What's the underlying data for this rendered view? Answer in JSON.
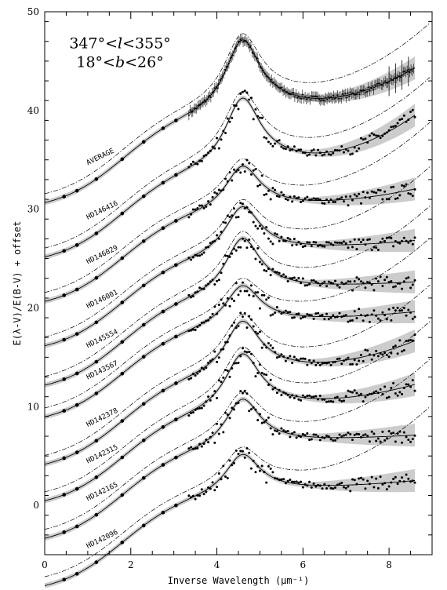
{
  "chart_data": {
    "type": "line",
    "xlabel": "Inverse Wavelength (μm⁻¹)",
    "ylabel": "E(λ-V)/E(B-V) + offset",
    "xlim": [
      0,
      9
    ],
    "ylim": [
      -5,
      50
    ],
    "x_ticks": [
      0,
      2,
      4,
      6,
      8
    ],
    "y_ticks": [
      0,
      10,
      20,
      30,
      40,
      50
    ],
    "annotation": {
      "line1": [
        "347°<",
        "l",
        "<355°"
      ],
      "line2": [
        "18°<",
        "b",
        "<26°"
      ]
    },
    "bump_center": 4.6,
    "legend": "none",
    "grid": false,
    "series": [
      {
        "name": "AVERAGE",
        "offset": 35.0,
        "bump_amp": 9.0,
        "far_uv": 0.45
      },
      {
        "name": "HD146416",
        "offset": 29.5,
        "bump_amp": 8.5,
        "far_uv": 0.55
      },
      {
        "name": "HD146029",
        "offset": 25.0,
        "bump_amp": 5.5,
        "far_uv": 0.15
      },
      {
        "name": "HD146001",
        "offset": 20.5,
        "bump_amp": 6.0,
        "far_uv": 0.05
      },
      {
        "name": "HD145554",
        "offset": 16.5,
        "bump_amp": 7.0,
        "far_uv": 0.02
      },
      {
        "name": "HD143567",
        "offset": 13.3,
        "bump_amp": 5.0,
        "far_uv": 0.05
      },
      {
        "name": "HD142378",
        "offset": 8.5,
        "bump_amp": 6.5,
        "far_uv": 0.3
      },
      {
        "name": "HD142315",
        "offset": 4.8,
        "bump_amp": 7.0,
        "far_uv": 0.2
      },
      {
        "name": "HD142165",
        "offset": 1.0,
        "bump_amp": 6.0,
        "far_uv": 0.02
      },
      {
        "name": "HD142096",
        "offset": -3.8,
        "bump_amp": 5.0,
        "far_uv": 0.05
      }
    ]
  }
}
